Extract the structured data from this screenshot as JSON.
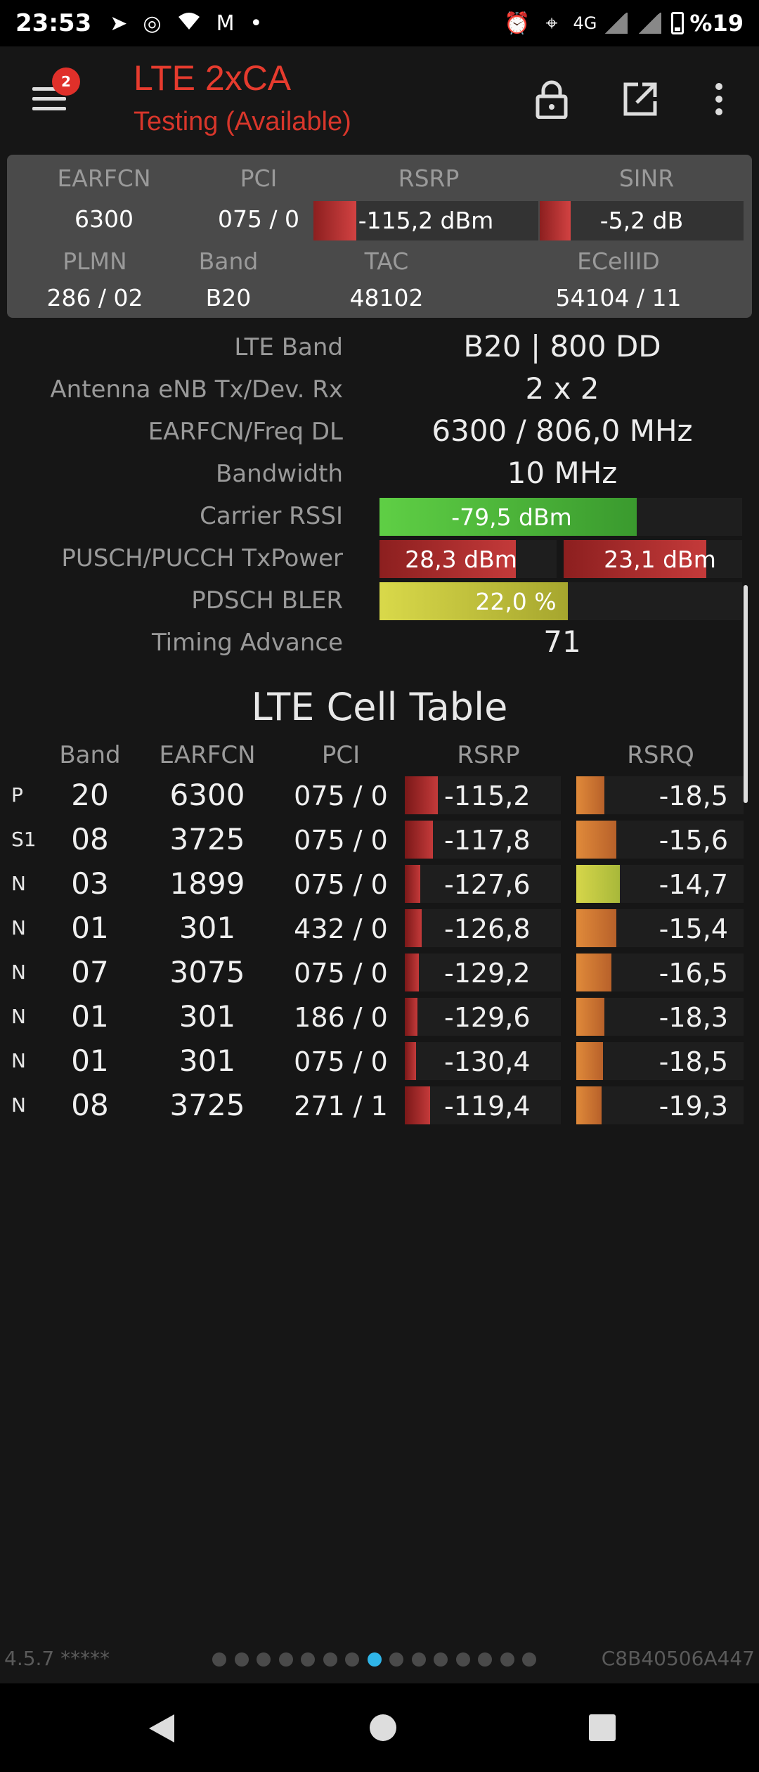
{
  "status_bar": {
    "time": "23:53",
    "network": "4G",
    "battery": "%19",
    "icons": [
      "telegram-icon",
      "whatsapp-icon",
      "wifi-icon",
      "gmail-icon",
      "dot-icon",
      "alarm-icon",
      "location-icon",
      "signal-icon",
      "battery-icon"
    ]
  },
  "toolbar": {
    "title": "LTE 2xCA",
    "subtitle": "Testing (Available)",
    "menu_badge": "2",
    "icons": [
      "menu-icon",
      "lock-icon",
      "open-external-icon",
      "more-vert-icon"
    ]
  },
  "summary": {
    "earfcn_label": "EARFCN",
    "earfcn": "6300",
    "pci_label": "PCI",
    "pci": "075 / 0",
    "rsrp_label": "RSRP",
    "rsrp": "-115,2 dBm",
    "rsrp_level": 0.19,
    "sinr_label": "SINR",
    "sinr": "-5,2 dB",
    "sinr_level": 0.15,
    "plmn_label": "PLMN",
    "plmn": "286 / 02",
    "band_label": "Band",
    "band": "B20",
    "tac_label": "TAC",
    "tac": "48102",
    "ecellid_label": "ECellID",
    "ecellid": "54104 / 11"
  },
  "details": [
    {
      "label": "LTE Band",
      "value": "B20 | 800 DD"
    },
    {
      "label": "Antenna eNB Tx/Dev. Rx",
      "value": "2 x 2"
    },
    {
      "label": "EARFCN/Freq DL",
      "value": "6300 / 806,0 MHz"
    },
    {
      "label": "Bandwidth",
      "value": "10 MHz"
    },
    {
      "label": "Carrier RSSI",
      "value": "-79,5 dBm",
      "level": 0.71
    },
    {
      "label": "PUSCH/PUCCH TxPower",
      "value": "28,3 dBm",
      "value2": "23,1 dBm",
      "level": 0.77,
      "level2": 0.8
    },
    {
      "label": "PDSCH BLER",
      "value": "22,0 %",
      "level": 0.52
    },
    {
      "label": "Timing Advance",
      "value": "71"
    }
  ],
  "cell_table": {
    "title": "LTE Cell Table",
    "headers": {
      "band": "Band",
      "earfcn": "EARFCN",
      "pci": "PCI",
      "rsrp": "RSRP",
      "rsrq": "RSRQ"
    },
    "rows": [
      {
        "type": "P",
        "band": "20",
        "earfcn": "6300",
        "pci": "075 / 0",
        "rsrp": "-115,2",
        "rsrp_level": 0.21,
        "rsrq": "-18,5",
        "rsrq_level": 0.17
      },
      {
        "type": "S1",
        "band": "08",
        "earfcn": "3725",
        "pci": "075 / 0",
        "rsrp": "-117,8",
        "rsrp_level": 0.18,
        "rsrq": "-15,6",
        "rsrq_level": 0.24
      },
      {
        "type": "N",
        "band": "03",
        "earfcn": "1899",
        "pci": "075 / 0",
        "rsrp": "-127,6",
        "rsrp_level": 0.1,
        "rsrq": "-14,7",
        "rsrq_level": 0.26
      },
      {
        "type": "N",
        "band": "01",
        "earfcn": "301",
        "pci": "432 / 0",
        "rsrp": "-126,8",
        "rsrp_level": 0.11,
        "rsrq": "-15,4",
        "rsrq_level": 0.24
      },
      {
        "type": "N",
        "band": "07",
        "earfcn": "3075",
        "pci": "075 / 0",
        "rsrp": "-129,2",
        "rsrp_level": 0.09,
        "rsrq": "-16,5",
        "rsrq_level": 0.21
      },
      {
        "type": "N",
        "band": "01",
        "earfcn": "301",
        "pci": "186 / 0",
        "rsrp": "-129,6",
        "rsrp_level": 0.08,
        "rsrq": "-18,3",
        "rsrq_level": 0.17
      },
      {
        "type": "N",
        "band": "01",
        "earfcn": "301",
        "pci": "075 / 0",
        "rsrp": "-130,4",
        "rsrp_level": 0.07,
        "rsrq": "-18,5",
        "rsrq_level": 0.16
      },
      {
        "type": "N",
        "band": "08",
        "earfcn": "3725",
        "pci": "271 / 1",
        "rsrp": "-119,4",
        "rsrp_level": 0.16,
        "rsrq": "-19,3",
        "rsrq_level": 0.15
      }
    ]
  },
  "footer": {
    "version": "4.5.7 *****",
    "cell_code": "C8B40506A447",
    "page_count": 15,
    "active_page": 8
  },
  "colors": {
    "accent": "#e63b2e",
    "rsrp_bar": "#c43a3a",
    "rsrq_bar": "#e08a3a",
    "rssi_bar": "#5fcf45",
    "bler_bar": "#d9d94a",
    "page_dot_active": "#2fb5e8"
  }
}
